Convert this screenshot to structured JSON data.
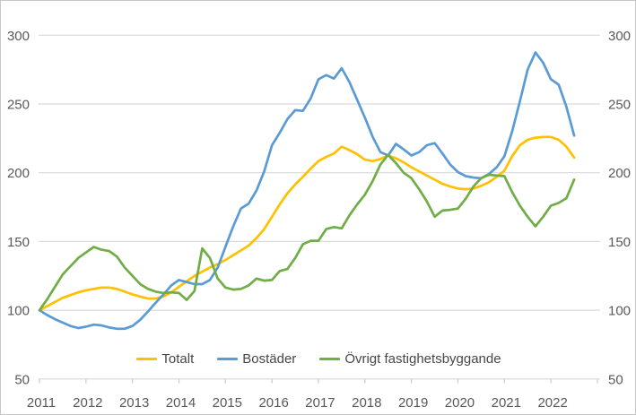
{
  "chart": {
    "background": "#ffffff",
    "frame_border_color": "#c6c6c6",
    "gridline_color": "#d9d9d9",
    "tick_color": "#c9c9c9",
    "axis_label_color": "#595959",
    "legend_label_color": "#474747"
  },
  "chart_data": {
    "type": "line",
    "title": "",
    "xlabel": "",
    "ylabel": "",
    "ylim": [
      50,
      300
    ],
    "y_ticks": [
      300,
      250,
      200,
      150,
      100,
      50
    ],
    "y_axis_sides": [
      "left",
      "right"
    ],
    "x_tick_labels": [
      "2011",
      "2012",
      "2013",
      "2014",
      "2015",
      "2016",
      "2017",
      "2018",
      "2019",
      "2020",
      "2021",
      "2022"
    ],
    "x_start": 2011.0,
    "x_step_years": 0.16667,
    "x_end": 2022.5,
    "grid": "horizontal-only",
    "legend_position": "bottom-center",
    "series": [
      {
        "name": "Totalt",
        "color": "#FFC000",
        "values": [
          100,
          103,
          106,
          109,
          111,
          113,
          114.5,
          115.5,
          116.5,
          116.5,
          115.5,
          113.5,
          111.5,
          110,
          108.5,
          108.5,
          110,
          113,
          117,
          121,
          125,
          128,
          131,
          133.5,
          136.5,
          140,
          143.5,
          147,
          152.5,
          159,
          168,
          177,
          185,
          191.5,
          197,
          203,
          208.5,
          211.5,
          214,
          219,
          216.5,
          213.5,
          209.5,
          208.5,
          210,
          212.5,
          210.5,
          207.5,
          204,
          201,
          198,
          195,
          192,
          190,
          188.5,
          188,
          188.5,
          190.5,
          193,
          197,
          201.5,
          212,
          220,
          224,
          225.5,
          226,
          226,
          224,
          219,
          211
        ]
      },
      {
        "name": "Bostäder",
        "color": "#5B9BD5",
        "values": [
          100,
          96.5,
          93.5,
          91,
          88.5,
          87,
          88,
          89.5,
          89,
          87.5,
          86.5,
          86.5,
          88.5,
          93,
          99,
          105.5,
          111.5,
          118,
          122,
          120.5,
          119,
          119,
          122,
          131,
          146,
          161,
          174,
          177.5,
          187,
          201,
          220,
          229,
          239,
          245.5,
          245,
          254,
          268,
          271,
          268.5,
          276,
          266,
          253,
          240,
          226,
          215,
          212.5,
          221,
          217,
          212.5,
          215,
          220,
          221.5,
          214,
          206,
          200.5,
          197.5,
          196.5,
          196,
          199,
          204,
          212,
          230,
          252,
          275,
          287.5,
          280,
          268,
          264,
          248,
          227
        ]
      },
      {
        "name": "Övrigt fastighetsbyggande",
        "color": "#70AD47",
        "values": [
          100,
          108,
          117,
          126,
          132,
          138,
          142,
          146,
          144,
          143,
          139,
          131,
          125,
          119,
          115.5,
          113.5,
          112.5,
          113,
          112.5,
          107.5,
          114,
          145,
          138,
          123,
          116.5,
          115,
          115.5,
          118,
          123,
          121.5,
          122,
          128.5,
          130,
          138,
          148,
          150.5,
          150.5,
          159,
          160.5,
          159.5,
          169,
          177,
          184,
          194,
          206,
          213,
          207,
          200,
          196,
          188,
          179,
          168,
          172.5,
          173,
          174,
          181,
          190,
          196,
          198.5,
          198,
          197.5,
          186,
          176,
          168,
          161,
          168,
          176,
          178,
          181.5,
          195
        ]
      }
    ]
  }
}
